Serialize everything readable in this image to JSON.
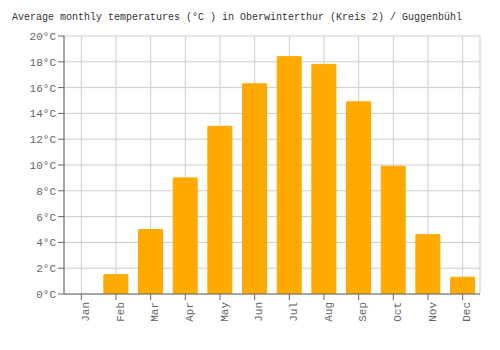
{
  "chart_data": {
    "type": "bar",
    "title": "Average monthly temperatures (°C ) in Oberwinterthur (Kreis 2) / Guggenbühl",
    "categories": [
      "Jan",
      "Feb",
      "Mar",
      "Apr",
      "May",
      "Jun",
      "Jul",
      "Aug",
      "Sep",
      "Oct",
      "Nov",
      "Dec"
    ],
    "values": [
      0.0,
      1.5,
      5.0,
      9.0,
      13.0,
      16.3,
      18.4,
      17.8,
      14.9,
      9.9,
      4.6,
      1.3
    ],
    "color": "#FFAA00",
    "ylim": [
      0,
      20
    ],
    "yticks": [
      {
        "value": 0,
        "label": "0°C"
      },
      {
        "value": 2,
        "label": "2°C"
      },
      {
        "value": 4,
        "label": "4°C"
      },
      {
        "value": 6,
        "label": "6°C"
      },
      {
        "value": 8,
        "label": "8°C"
      },
      {
        "value": 10,
        "label": "10°C"
      },
      {
        "value": 12,
        "label": "12°C"
      },
      {
        "value": 14,
        "label": "14°C"
      },
      {
        "value": 16,
        "label": "16°C"
      },
      {
        "value": 18,
        "label": "18°C"
      },
      {
        "value": 20,
        "label": "20°C"
      }
    ],
    "grid": true
  }
}
